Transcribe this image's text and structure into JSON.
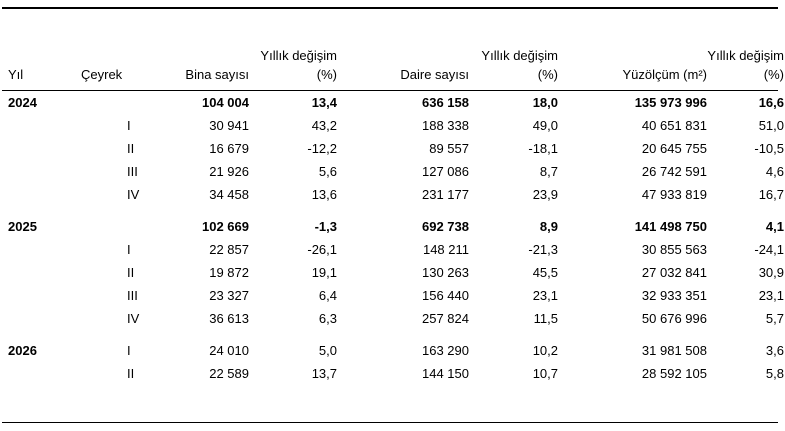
{
  "headers": {
    "yil": "Yıl",
    "ceyrek": "Çeyrek",
    "bina": "Bina sayısı",
    "daire": "Daire sayısı",
    "yuzolcum": "Yüzölçüm (m²)",
    "degisim_line1": "Yıllık değişim",
    "degisim_line2": "(%)"
  },
  "blocks": [
    {
      "year": "2024",
      "total": {
        "bina": "104 004",
        "bina_d": "13,4",
        "daire": "636 158",
        "daire_d": "18,0",
        "yuz": "135 973 996",
        "yuz_d": "16,6"
      },
      "quarters": [
        {
          "q": "I",
          "bina": "30 941",
          "bina_d": "43,2",
          "daire": "188 338",
          "daire_d": "49,0",
          "yuz": "40 651 831",
          "yuz_d": "51,0"
        },
        {
          "q": "II",
          "bina": "16 679",
          "bina_d": "-12,2",
          "daire": "89 557",
          "daire_d": "-18,1",
          "yuz": "20 645 755",
          "yuz_d": "-10,5"
        },
        {
          "q": "III",
          "bina": "21 926",
          "bina_d": "5,6",
          "daire": "127 086",
          "daire_d": "8,7",
          "yuz": "26 742 591",
          "yuz_d": "4,6"
        },
        {
          "q": "IV",
          "bina": "34 458",
          "bina_d": "13,6",
          "daire": "231 177",
          "daire_d": "23,9",
          "yuz": "47 933 819",
          "yuz_d": "16,7"
        }
      ]
    },
    {
      "year": "2025",
      "total": {
        "bina": "102 669",
        "bina_d": "-1,3",
        "daire": "692 738",
        "daire_d": "8,9",
        "yuz": "141 498 750",
        "yuz_d": "4,1"
      },
      "quarters": [
        {
          "q": "I",
          "bina": "22 857",
          "bina_d": "-26,1",
          "daire": "148 211",
          "daire_d": "-21,3",
          "yuz": "30 855 563",
          "yuz_d": "-24,1"
        },
        {
          "q": "II",
          "bina": "19 872",
          "bina_d": "19,1",
          "daire": "130 263",
          "daire_d": "45,5",
          "yuz": "27 032 841",
          "yuz_d": "30,9"
        },
        {
          "q": "III",
          "bina": "23 327",
          "bina_d": "6,4",
          "daire": "156 440",
          "daire_d": "23,1",
          "yuz": "32 933 351",
          "yuz_d": "23,1"
        },
        {
          "q": "IV",
          "bina": "36 613",
          "bina_d": "6,3",
          "daire": "257 824",
          "daire_d": "11,5",
          "yuz": "50 676 996",
          "yuz_d": "5,7"
        }
      ]
    },
    {
      "year": "2026",
      "first_quarter_inline": {
        "q": "I",
        "bina": "24 010",
        "bina_d": "5,0",
        "daire": "163 290",
        "daire_d": "10,2",
        "yuz": "31 981 508",
        "yuz_d": "3,6"
      },
      "quarters": [
        {
          "q": "II",
          "bina": "22 589",
          "bina_d": "13,7",
          "daire": "144 150",
          "daire_d": "10,7",
          "yuz": "28 592 105",
          "yuz_d": "5,8"
        }
      ]
    }
  ]
}
